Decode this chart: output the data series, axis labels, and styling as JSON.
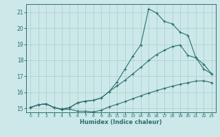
{
  "xlabel": "Humidex (Indice chaleur)",
  "bg_color": "#cce8e8",
  "grid_color": "#aacccc",
  "line_color": "#2a6e6e",
  "xlim": [
    -0.5,
    23.5
  ],
  "ylim": [
    14.75,
    21.5
  ],
  "yticks": [
    15,
    16,
    17,
    18,
    19,
    20,
    21
  ],
  "xticks": [
    0,
    1,
    2,
    3,
    4,
    5,
    6,
    7,
    8,
    9,
    10,
    11,
    12,
    13,
    14,
    15,
    16,
    17,
    18,
    19,
    20,
    21,
    22,
    23
  ],
  "line1_x": [
    0,
    1,
    2,
    3,
    4,
    5,
    6,
    7,
    8,
    9,
    10,
    11,
    12,
    13,
    14,
    15,
    16,
    17,
    18,
    19,
    20,
    21,
    22,
    23
  ],
  "line1_y": [
    15.05,
    15.22,
    15.28,
    15.05,
    14.92,
    14.95,
    14.82,
    14.82,
    14.78,
    14.88,
    15.1,
    15.25,
    15.42,
    15.6,
    15.78,
    15.95,
    16.1,
    16.25,
    16.38,
    16.5,
    16.6,
    16.7,
    16.72,
    16.6
  ],
  "line2_x": [
    0,
    1,
    2,
    3,
    4,
    5,
    6,
    7,
    8,
    9,
    10,
    11,
    12,
    13,
    14,
    15,
    16,
    17,
    18,
    19,
    20,
    21,
    22,
    23
  ],
  "line2_y": [
    15.05,
    15.22,
    15.28,
    15.05,
    14.95,
    15.05,
    15.35,
    15.45,
    15.5,
    15.65,
    16.05,
    16.4,
    16.75,
    17.15,
    17.55,
    17.98,
    18.35,
    18.62,
    18.85,
    18.95,
    18.3,
    18.15,
    17.75,
    17.15
  ],
  "line3_x": [
    0,
    1,
    2,
    3,
    4,
    5,
    6,
    7,
    8,
    9,
    10,
    11,
    12,
    13,
    14,
    15,
    16,
    17,
    18,
    19,
    20,
    21,
    22,
    23
  ],
  "line3_y": [
    15.05,
    15.22,
    15.28,
    15.05,
    14.95,
    15.05,
    15.35,
    15.45,
    15.5,
    15.65,
    16.05,
    16.65,
    17.45,
    18.25,
    18.95,
    21.2,
    20.95,
    20.42,
    20.27,
    19.75,
    19.55,
    18.15,
    17.45,
    17.15
  ]
}
